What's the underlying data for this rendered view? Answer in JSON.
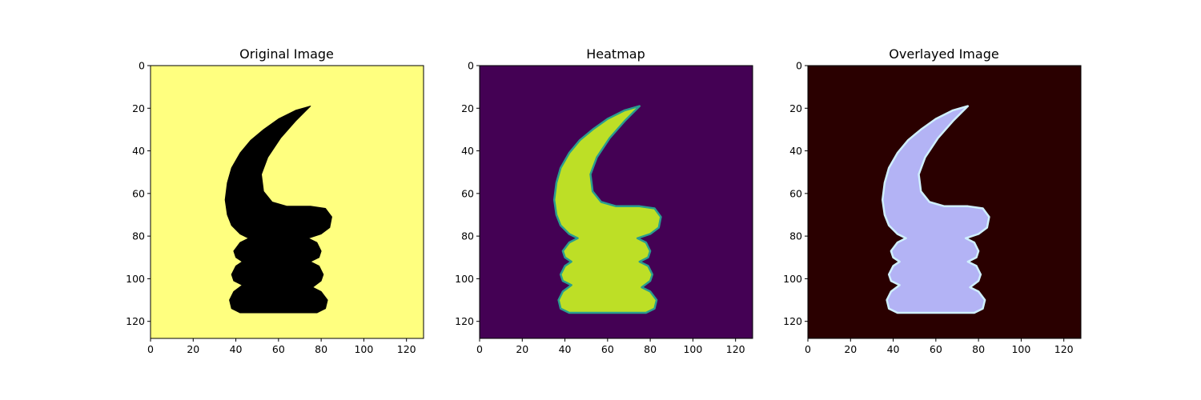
{
  "chart_data": [
    {
      "type": "image",
      "title": "Original Image",
      "xlim": [
        0,
        128
      ],
      "ylim": [
        128,
        0
      ],
      "x_ticks": [
        "0",
        "20",
        "40",
        "60",
        "80",
        "100",
        "120"
      ],
      "y_ticks": [
        "0",
        "20",
        "40",
        "60",
        "80",
        "100",
        "120"
      ],
      "background_color": "#ffff7f",
      "shape_color": "#000000",
      "outline_color": null
    },
    {
      "type": "image",
      "title": "Heatmap",
      "xlim": [
        0,
        128
      ],
      "ylim": [
        128,
        0
      ],
      "x_ticks": [
        "0",
        "20",
        "40",
        "60",
        "80",
        "100",
        "120"
      ],
      "y_ticks": [
        "0",
        "20",
        "40",
        "60",
        "80",
        "100",
        "120"
      ],
      "background_color": "#440154",
      "shape_color": "#bddf26",
      "outline_color": "#2a9d8f"
    },
    {
      "type": "image",
      "title": "Overlayed Image",
      "xlim": [
        0,
        128
      ],
      "ylim": [
        128,
        0
      ],
      "x_ticks": [
        "0",
        "20",
        "40",
        "60",
        "80",
        "100",
        "120"
      ],
      "y_ticks": [
        "0",
        "20",
        "40",
        "60",
        "80",
        "100",
        "120"
      ],
      "background_color": "#2a0000",
      "shape_color": "#b3b3f5",
      "outline_color": "#d0f0ff"
    }
  ],
  "shape_outline": [
    [
      75,
      19
    ],
    [
      68,
      21
    ],
    [
      60,
      25
    ],
    [
      53,
      30
    ],
    [
      47,
      35
    ],
    [
      42,
      41
    ],
    [
      38,
      48
    ],
    [
      36,
      55
    ],
    [
      35,
      63
    ],
    [
      36,
      70
    ],
    [
      38,
      75
    ],
    [
      42,
      79
    ],
    [
      46,
      81
    ],
    [
      42,
      83
    ],
    [
      39,
      87
    ],
    [
      40,
      90
    ],
    [
      43,
      92
    ],
    [
      40,
      94
    ],
    [
      38,
      98
    ],
    [
      39,
      101
    ],
    [
      43,
      103
    ],
    [
      39,
      106
    ],
    [
      37,
      110
    ],
    [
      38,
      114
    ],
    [
      42,
      116
    ],
    [
      78,
      116
    ],
    [
      82,
      114
    ],
    [
      83,
      110
    ],
    [
      80,
      106
    ],
    [
      76,
      104
    ],
    [
      80,
      101
    ],
    [
      81,
      98
    ],
    [
      79,
      94
    ],
    [
      75,
      92
    ],
    [
      79,
      90
    ],
    [
      80,
      87
    ],
    [
      78,
      83
    ],
    [
      74,
      81
    ],
    [
      80,
      79
    ],
    [
      84,
      76
    ],
    [
      85,
      71
    ],
    [
      82,
      67
    ],
    [
      75,
      66
    ],
    [
      64,
      66
    ],
    [
      57,
      64
    ],
    [
      53,
      59
    ],
    [
      52,
      51
    ],
    [
      55,
      43
    ],
    [
      61,
      34
    ],
    [
      68,
      26
    ],
    [
      75,
      19
    ]
  ]
}
